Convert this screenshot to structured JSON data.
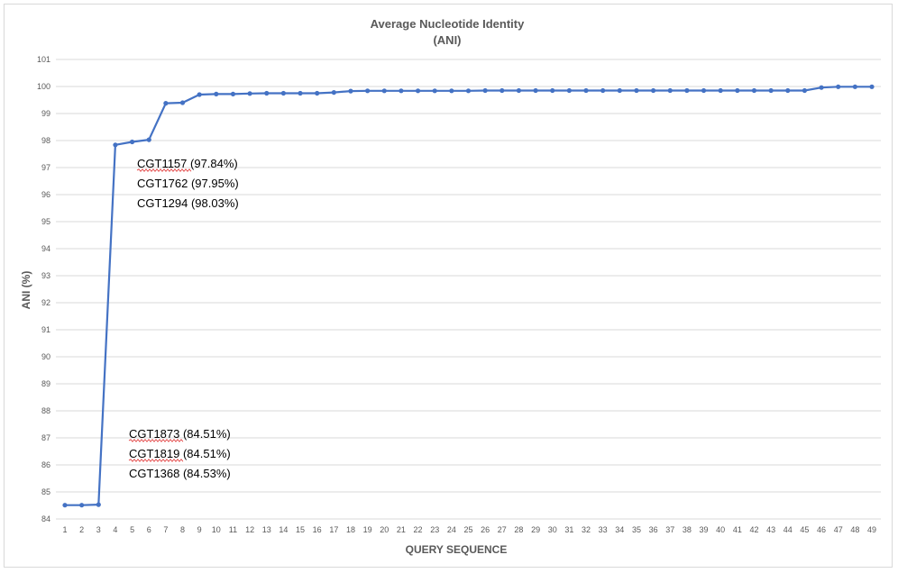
{
  "chart_data": {
    "type": "line",
    "title": "Average Nucleotide Identity",
    "subtitle": "(ANI)",
    "xlabel": "QUERY SEQUENCE",
    "ylabel": "ANI (%)",
    "ylim": [
      84,
      101
    ],
    "yticks": [
      84,
      85,
      86,
      87,
      88,
      89,
      90,
      91,
      92,
      93,
      94,
      95,
      96,
      97,
      98,
      99,
      100,
      101
    ],
    "x": [
      1,
      2,
      3,
      4,
      5,
      6,
      7,
      8,
      9,
      10,
      11,
      12,
      13,
      14,
      15,
      16,
      17,
      18,
      19,
      20,
      21,
      22,
      23,
      24,
      25,
      26,
      27,
      28,
      29,
      30,
      31,
      32,
      33,
      34,
      35,
      36,
      37,
      38,
      39,
      40,
      41,
      42,
      43,
      44,
      45,
      46,
      47,
      48,
      49
    ],
    "values": [
      84.51,
      84.51,
      84.53,
      97.84,
      97.95,
      98.03,
      99.38,
      99.4,
      99.7,
      99.72,
      99.72,
      99.74,
      99.75,
      99.75,
      99.75,
      99.75,
      99.78,
      99.83,
      99.84,
      99.84,
      99.84,
      99.84,
      99.84,
      99.84,
      99.84,
      99.85,
      99.85,
      99.85,
      99.85,
      99.85,
      99.85,
      99.85,
      99.85,
      99.85,
      99.85,
      99.85,
      99.85,
      99.85,
      99.85,
      99.85,
      99.85,
      99.85,
      99.85,
      99.85,
      99.85,
      99.96,
      99.99,
      99.99,
      99.99
    ],
    "grid": true,
    "line_color": "#4472c4",
    "annotations_upper": [
      "CGT1157 (97.84%)",
      "CGT1762 (97.95%)",
      "CGT1294 (98.03%)"
    ],
    "annotations_lower": [
      "CGT1873 (84.51%)",
      "CGT1819 (84.51%)",
      "CGT1368 (84.53%)"
    ]
  }
}
